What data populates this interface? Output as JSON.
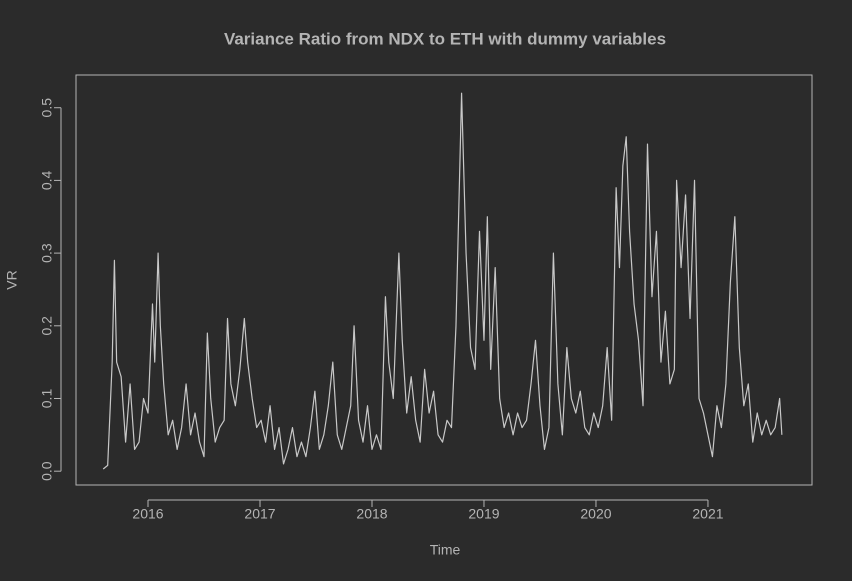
{
  "chart_data": {
    "type": "line",
    "title": "Variance Ratio from NDX to ETH with dummy variables",
    "x_label": "Time",
    "y_label": "VR",
    "color": "#c8c8c8",
    "x": [
      2015.6,
      2015.64,
      2015.68,
      2015.7,
      2015.72,
      2015.76,
      2015.8,
      2015.84,
      2015.88,
      2015.92,
      2015.96,
      2016.0,
      2016.04,
      2016.06,
      2016.09,
      2016.11,
      2016.14,
      2016.18,
      2016.22,
      2016.26,
      2016.3,
      2016.34,
      2016.38,
      2016.42,
      2016.46,
      2016.5,
      2016.53,
      2016.56,
      2016.6,
      2016.64,
      2016.68,
      2016.71,
      2016.74,
      2016.78,
      2016.82,
      2016.86,
      2016.89,
      2016.93,
      2016.97,
      2017.01,
      2017.05,
      2017.09,
      2017.13,
      2017.17,
      2017.21,
      2017.25,
      2017.29,
      2017.33,
      2017.37,
      2017.41,
      2017.45,
      2017.49,
      2017.53,
      2017.57,
      2017.61,
      2017.65,
      2017.69,
      2017.73,
      2017.77,
      2017.81,
      2017.84,
      2017.88,
      2017.92,
      2017.96,
      2018.0,
      2018.04,
      2018.08,
      2018.12,
      2018.15,
      2018.19,
      2018.24,
      2018.27,
      2018.31,
      2018.35,
      2018.39,
      2018.43,
      2018.47,
      2018.51,
      2018.55,
      2018.59,
      2018.63,
      2018.67,
      2018.71,
      2018.75,
      2018.8,
      2018.84,
      2018.88,
      2018.92,
      2018.96,
      2019.0,
      2019.03,
      2019.06,
      2019.1,
      2019.14,
      2019.18,
      2019.22,
      2019.26,
      2019.3,
      2019.34,
      2019.38,
      2019.42,
      2019.46,
      2019.5,
      2019.54,
      2019.58,
      2019.62,
      2019.66,
      2019.7,
      2019.74,
      2019.78,
      2019.82,
      2019.86,
      2019.9,
      2019.94,
      2019.98,
      2020.02,
      2020.06,
      2020.1,
      2020.14,
      2020.18,
      2020.21,
      2020.24,
      2020.27,
      2020.3,
      2020.34,
      2020.38,
      2020.42,
      2020.46,
      2020.5,
      2020.54,
      2020.58,
      2020.62,
      2020.66,
      2020.7,
      2020.72,
      2020.76,
      2020.8,
      2020.84,
      2020.88,
      2020.92,
      2020.96,
      2021.0,
      2021.04,
      2021.08,
      2021.12,
      2021.16,
      2021.2,
      2021.24,
      2021.28,
      2021.32,
      2021.36,
      2021.4,
      2021.44,
      2021.48,
      2021.52,
      2021.56,
      2021.6,
      2021.64,
      2021.66
    ],
    "values": [
      0.003,
      0.008,
      0.15,
      0.29,
      0.15,
      0.13,
      0.04,
      0.12,
      0.03,
      0.04,
      0.1,
      0.08,
      0.23,
      0.15,
      0.3,
      0.2,
      0.12,
      0.05,
      0.07,
      0.03,
      0.06,
      0.12,
      0.05,
      0.08,
      0.04,
      0.02,
      0.19,
      0.1,
      0.04,
      0.06,
      0.07,
      0.21,
      0.12,
      0.09,
      0.14,
      0.21,
      0.15,
      0.1,
      0.06,
      0.07,
      0.04,
      0.09,
      0.03,
      0.06,
      0.01,
      0.03,
      0.06,
      0.02,
      0.04,
      0.02,
      0.06,
      0.11,
      0.03,
      0.05,
      0.09,
      0.15,
      0.05,
      0.03,
      0.06,
      0.09,
      0.2,
      0.07,
      0.04,
      0.09,
      0.03,
      0.05,
      0.03,
      0.24,
      0.15,
      0.1,
      0.3,
      0.18,
      0.08,
      0.13,
      0.07,
      0.04,
      0.14,
      0.08,
      0.11,
      0.05,
      0.04,
      0.07,
      0.06,
      0.2,
      0.52,
      0.3,
      0.17,
      0.14,
      0.33,
      0.18,
      0.35,
      0.14,
      0.28,
      0.1,
      0.06,
      0.08,
      0.05,
      0.08,
      0.06,
      0.07,
      0.12,
      0.18,
      0.09,
      0.03,
      0.06,
      0.3,
      0.12,
      0.05,
      0.17,
      0.1,
      0.08,
      0.11,
      0.06,
      0.05,
      0.08,
      0.06,
      0.09,
      0.17,
      0.07,
      0.39,
      0.28,
      0.42,
      0.46,
      0.33,
      0.23,
      0.18,
      0.09,
      0.45,
      0.24,
      0.33,
      0.15,
      0.22,
      0.12,
      0.14,
      0.4,
      0.28,
      0.38,
      0.21,
      0.4,
      0.1,
      0.08,
      0.05,
      0.02,
      0.09,
      0.06,
      0.12,
      0.26,
      0.35,
      0.17,
      0.09,
      0.12,
      0.04,
      0.08,
      0.05,
      0.07,
      0.05,
      0.06,
      0.1,
      0.05
    ],
    "xlim": [
      2015.357,
      2021.929
    ],
    "ylim": [
      -0.019,
      0.545
    ],
    "xticks": [
      2016,
      2017,
      2018,
      2019,
      2020,
      2021
    ],
    "yticks": [
      {
        "value": 0,
        "label": "0.0"
      },
      0.1,
      0.2,
      0.3,
      0.4,
      0.5
    ]
  }
}
